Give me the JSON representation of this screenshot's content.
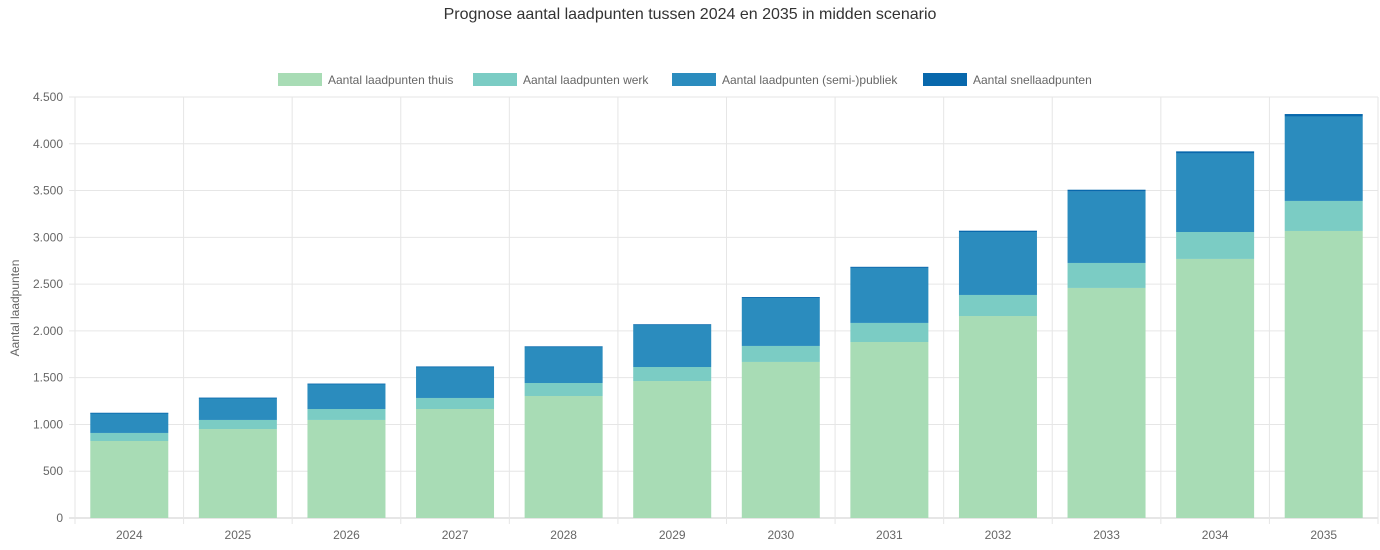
{
  "chart_data": {
    "type": "bar",
    "stacked": true,
    "title": "Prognose aantal laadpunten tussen 2024 en 2035 in midden scenario",
    "xlabel": "",
    "ylabel": "Aantal laadpunten",
    "ylim": [
      0,
      4500
    ],
    "yticks": [
      0,
      500,
      1000,
      1500,
      2000,
      2500,
      3000,
      3500,
      4000,
      4500
    ],
    "ytick_labels": [
      "0",
      "500",
      "1.000",
      "1.500",
      "2.000",
      "2.500",
      "3.000",
      "3.500",
      "4.000",
      "4.500"
    ],
    "grid": true,
    "legend_position": "top",
    "categories": [
      "2024",
      "2025",
      "2026",
      "2027",
      "2028",
      "2029",
      "2030",
      "2031",
      "2032",
      "2033",
      "2034",
      "2035"
    ],
    "series": [
      {
        "name": "Aantal laadpunten thuis",
        "color": "#a8dcb5",
        "values": [
          823,
          951,
          1048,
          1165,
          1304,
          1464,
          1668,
          1881,
          2159,
          2459,
          2769,
          3068
        ]
      },
      {
        "name": "Aantal laadpunten werk",
        "color": "#7bccc4",
        "values": [
          86,
          97,
          117,
          118,
          139,
          150,
          171,
          204,
          225,
          267,
          288,
          321
        ]
      },
      {
        "name": "Aantal laadpunten (semi-)publiek",
        "color": "#2b8cbe",
        "values": [
          213,
          235,
          267,
          331,
          385,
          449,
          513,
          588,
          673,
          765,
          840,
          903
        ]
      },
      {
        "name": "Aantal snellaadpunten",
        "color": "#0868ac",
        "values": [
          3,
          4,
          5,
          6,
          7,
          8,
          10,
          12,
          14,
          18,
          22,
          26
        ]
      }
    ]
  }
}
